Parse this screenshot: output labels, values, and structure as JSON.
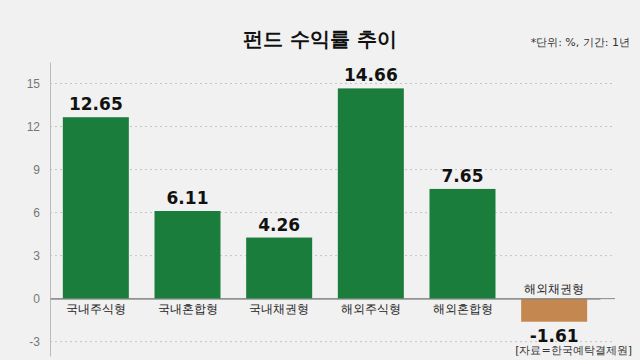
{
  "chart_data": {
    "type": "bar",
    "title": "펀드 수익률 추이",
    "subtitle": "*단위: %, 기간: 1년",
    "annotations": [
      "[자료=한국예탁결제원]"
    ],
    "categories": [
      "국내주식형",
      "국내혼합형",
      "국내채권형",
      "해외주식형",
      "해외혼합형",
      "해외채권형"
    ],
    "values": [
      12.65,
      6.11,
      4.26,
      14.66,
      7.65,
      -1.61
    ],
    "colors": [
      "#1a7d3c",
      "#1a7d3c",
      "#1a7d3c",
      "#1a7d3c",
      "#1a7d3c",
      "#c4874f"
    ],
    "ylim": [
      -4,
      16.5
    ],
    "yticks": [
      -3,
      0,
      3,
      6,
      9,
      12,
      15
    ],
    "grid": true,
    "data_labels": true
  }
}
